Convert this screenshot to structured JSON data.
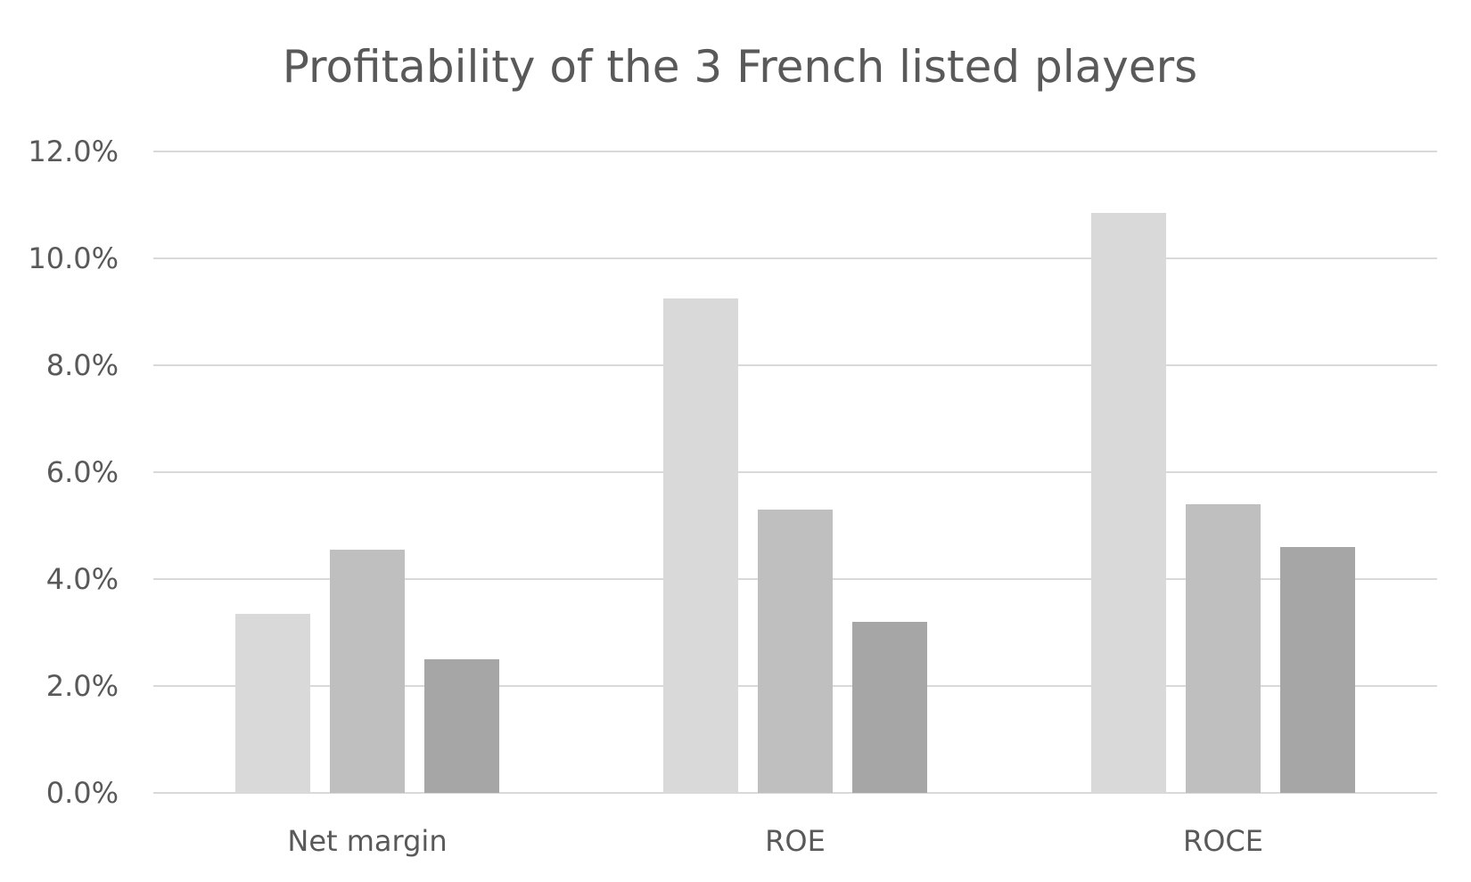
{
  "chart_data": {
    "type": "bar",
    "title": "Profitability of the 3 French listed players",
    "xlabel": "",
    "ylabel": "",
    "categories": [
      "Net margin",
      "ROE",
      "ROCE"
    ],
    "series": [
      {
        "values": [
          3.35,
          9.25,
          10.85
        ],
        "color": "#d9d9d9"
      },
      {
        "values": [
          4.55,
          5.3,
          5.4
        ],
        "color": "#bfbfbf"
      },
      {
        "values": [
          2.5,
          3.2,
          4.6
        ],
        "color": "#a6a6a6"
      }
    ],
    "ylim": [
      0,
      12
    ],
    "y_ticks": [
      0,
      2,
      4,
      6,
      8,
      10,
      12
    ],
    "y_tick_labels": [
      "0.0%",
      "2.0%",
      "4.0%",
      "6.0%",
      "8.0%",
      "10.0%",
      "12.0%"
    ],
    "grid": true,
    "legend": "none"
  }
}
